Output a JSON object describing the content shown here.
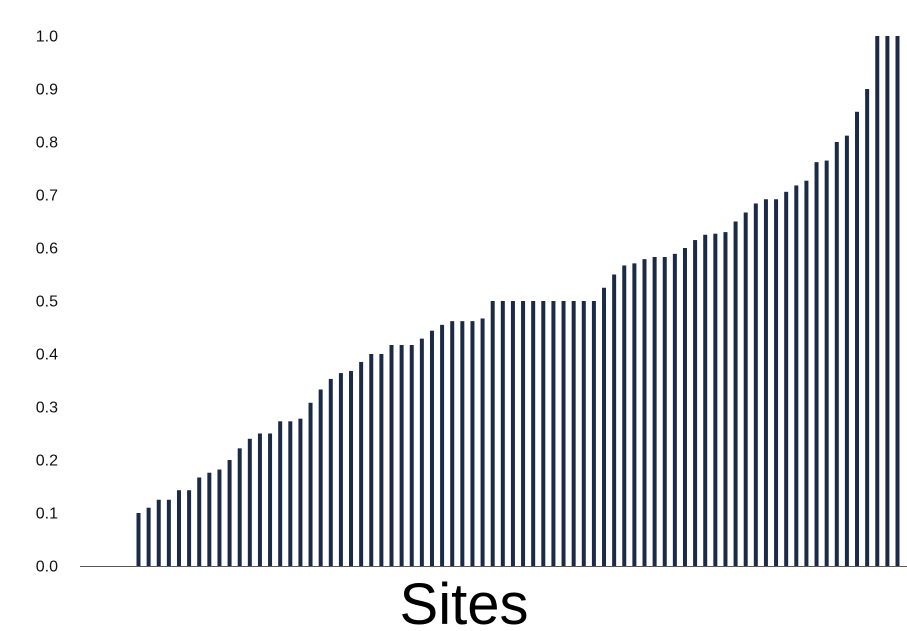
{
  "chart_data": {
    "type": "bar",
    "title": "",
    "xlabel": "Sites",
    "ylabel": "",
    "ylim": [
      0,
      1.0
    ],
    "yticks": [
      "0.0",
      "0.1",
      "0.2",
      "0.3",
      "0.4",
      "0.5",
      "0.6",
      "0.7",
      "0.8",
      "0.9",
      "1.0"
    ],
    "grid": false,
    "legend": "none",
    "bar_color": "#1b2a47",
    "values": [
      0.1,
      0.11,
      0.125,
      0.125,
      0.143,
      0.143,
      0.167,
      0.176,
      0.182,
      0.2,
      0.222,
      0.24,
      0.25,
      0.25,
      0.273,
      0.273,
      0.278,
      0.308,
      0.333,
      0.353,
      0.364,
      0.368,
      0.385,
      0.4,
      0.4,
      0.417,
      0.417,
      0.417,
      0.429,
      0.444,
      0.455,
      0.462,
      0.462,
      0.462,
      0.467,
      0.5,
      0.5,
      0.5,
      0.5,
      0.5,
      0.5,
      0.5,
      0.5,
      0.5,
      0.5,
      0.5,
      0.525,
      0.55,
      0.567,
      0.571,
      0.579,
      0.583,
      0.583,
      0.589,
      0.6,
      0.615,
      0.625,
      0.627,
      0.63,
      0.65,
      0.667,
      0.684,
      0.692,
      0.692,
      0.706,
      0.718,
      0.727,
      0.762,
      0.765,
      0.8,
      0.812,
      0.857,
      0.9,
      1.0,
      1.0,
      1.0
    ]
  }
}
